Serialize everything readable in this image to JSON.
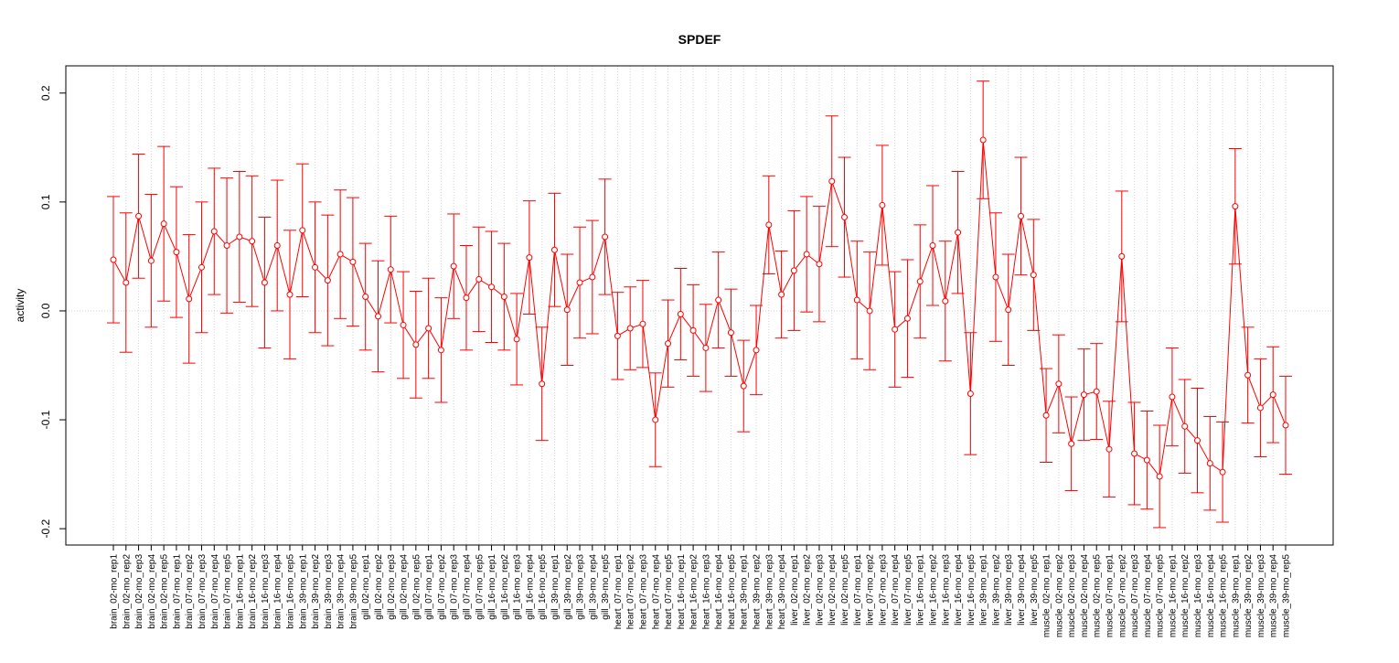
{
  "chart_data": {
    "type": "line",
    "title": "SPDEF",
    "xlabel": "",
    "ylabel": "activity",
    "ylim": [
      -0.215,
      0.225
    ],
    "yticks": [
      -0.2,
      -0.1,
      0.0,
      0.1,
      0.2
    ],
    "ytick_labels": [
      "-0.2",
      "-0.1",
      "0.0",
      "0.1",
      "0.2"
    ],
    "grid": true,
    "legend": "none",
    "series_color": "#ff0000",
    "grid_color": "#d3d3d3",
    "categories": [
      "brain_02-mo_rep1",
      "brain_02-mo_rep2",
      "brain_02-mo_rep3",
      "brain_02-mo_rep4",
      "brain_02-mo_rep5",
      "brain_07-mo_rep1",
      "brain_07-mo_rep2",
      "brain_07-mo_rep3",
      "brain_07-mo_rep4",
      "brain_07-mo_rep5",
      "brain_16-mo_rep1",
      "brain_16-mo_rep2",
      "brain_16-mo_rep3",
      "brain_16-mo_rep4",
      "brain_16-mo_rep5",
      "brain_39-mo_rep1",
      "brain_39-mo_rep2",
      "brain_39-mo_rep3",
      "brain_39-mo_rep4",
      "brain_39-mo_rep5",
      "gill_02-mo_rep1",
      "gill_02-mo_rep2",
      "gill_02-mo_rep3",
      "gill_02-mo_rep4",
      "gill_02-mo_rep5",
      "gill_07-mo_rep1",
      "gill_07-mo_rep2",
      "gill_07-mo_rep3",
      "gill_07-mo_rep4",
      "gill_07-mo_rep5",
      "gill_16-mo_rep1",
      "gill_16-mo_rep2",
      "gill_16-mo_rep3",
      "gill_16-mo_rep4",
      "gill_16-mo_rep5",
      "gill_39-mo_rep1",
      "gill_39-mo_rep2",
      "gill_39-mo_rep3",
      "gill_39-mo_rep4",
      "gill_39-mo_rep5",
      "heart_07-mo_rep1",
      "heart_07-mo_rep2",
      "heart_07-mo_rep3",
      "heart_07-mo_rep4",
      "heart_07-mo_rep5",
      "heart_16-mo_rep1",
      "heart_16-mo_rep2",
      "heart_16-mo_rep3",
      "heart_16-mo_rep4",
      "heart_16-mo_rep5",
      "heart_39-mo_rep1",
      "heart_39-mo_rep2",
      "heart_39-mo_rep3",
      "heart_39-mo_rep4",
      "liver_02-mo_rep1",
      "liver_02-mo_rep2",
      "liver_02-mo_rep3",
      "liver_02-mo_rep4",
      "liver_02-mo_rep5",
      "liver_07-mo_rep1",
      "liver_07-mo_rep2",
      "liver_07-mo_rep3",
      "liver_07-mo_rep4",
      "liver_07-mo_rep5",
      "liver_16-mo_rep1",
      "liver_16-mo_rep2",
      "liver_16-mo_rep3",
      "liver_16-mo_rep4",
      "liver_16-mo_rep5",
      "liver_39-mo_rep1",
      "liver_39-mo_rep2",
      "liver_39-mo_rep3",
      "liver_39-mo_rep4",
      "liver_39-mo_rep5",
      "muscle_02-mo_rep1",
      "muscle_02-mo_rep2",
      "muscle_02-mo_rep3",
      "muscle_02-mo_rep4",
      "muscle_02-mo_rep5",
      "muscle_07-mo_rep1",
      "muscle_07-mo_rep2",
      "muscle_07-mo_rep3",
      "muscle_07-mo_rep4",
      "muscle_07-mo_rep5",
      "muscle_16-mo_rep1",
      "muscle_16-mo_rep2",
      "muscle_16-mo_rep3",
      "muscle_16-mo_rep4",
      "muscle_16-mo_rep5",
      "muscle_39-mo_rep1",
      "muscle_39-mo_rep2",
      "muscle_39-mo_rep3",
      "muscle_39-mo_rep4",
      "muscle_39-mo_rep5"
    ],
    "values": [
      0.047,
      0.026,
      0.087,
      0.046,
      0.08,
      0.054,
      0.011,
      0.04,
      0.073,
      0.06,
      0.068,
      0.064,
      0.026,
      0.06,
      0.015,
      0.074,
      0.04,
      0.028,
      0.052,
      0.045,
      0.013,
      -0.005,
      0.038,
      -0.013,
      -0.031,
      -0.016,
      -0.036,
      0.041,
      0.012,
      0.029,
      0.022,
      0.013,
      -0.026,
      0.049,
      -0.067,
      0.056,
      0.001,
      0.026,
      0.031,
      0.068,
      -0.023,
      -0.016,
      -0.012,
      -0.1,
      -0.03,
      -0.003,
      -0.018,
      -0.034,
      0.01,
      -0.02,
      -0.069,
      -0.036,
      0.079,
      0.015,
      0.037,
      0.052,
      0.043,
      0.119,
      0.086,
      0.01,
      0.0,
      0.097,
      -0.017,
      -0.007,
      0.027,
      0.06,
      0.009,
      0.072,
      -0.076,
      0.157,
      0.031,
      0.001,
      0.087,
      0.033,
      -0.096,
      -0.067,
      -0.122,
      -0.077,
      -0.074,
      -0.127,
      0.05,
      -0.131,
      -0.137,
      -0.152,
      -0.079,
      -0.106,
      -0.119,
      -0.14,
      -0.148,
      0.096,
      -0.059,
      -0.089,
      -0.077,
      -0.105
    ],
    "error": 0.06,
    "errors": [
      0.058,
      0.064,
      0.057,
      0.061,
      0.071,
      0.06,
      0.059,
      0.06,
      0.058,
      0.062,
      0.06,
      0.06,
      0.06,
      0.06,
      0.059,
      0.061,
      0.06,
      0.06,
      0.059,
      0.059,
      0.049,
      0.051,
      0.049,
      0.049,
      0.049,
      0.046,
      0.048,
      0.048,
      0.048,
      0.048,
      0.051,
      0.049,
      0.042,
      0.052,
      0.052,
      0.052,
      0.051,
      0.051,
      0.052,
      0.053,
      0.04,
      0.038,
      0.04,
      0.043,
      0.04,
      0.042,
      0.042,
      0.04,
      0.044,
      0.04,
      0.042,
      0.041,
      0.045,
      0.04,
      0.055,
      0.053,
      0.053,
      0.06,
      0.055,
      0.054,
      0.054,
      0.055,
      0.053,
      0.054,
      0.052,
      0.055,
      0.055,
      0.056,
      0.056,
      0.054,
      0.059,
      0.051,
      0.054,
      0.051,
      0.043,
      0.045,
      0.043,
      0.042,
      0.044,
      0.044,
      0.06,
      0.047,
      0.045,
      0.047,
      0.045,
      0.043,
      0.048,
      0.043,
      0.046,
      0.053,
      0.044,
      0.045,
      0.044,
      0.045
    ]
  }
}
